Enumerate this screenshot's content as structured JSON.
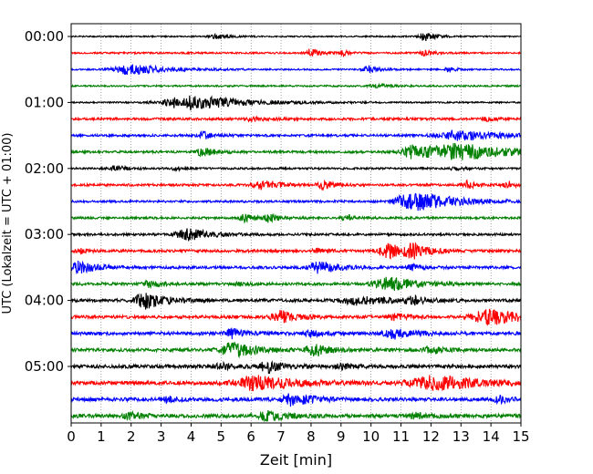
{
  "chart_data": {
    "type": "line",
    "subtype": "helicorder",
    "xlabel": "Zeit  [min]",
    "ylabel": "UTC (Lokalzeit = UTC + 01:00)",
    "xlim": [
      0,
      15
    ],
    "x_ticks": [
      "0",
      "1",
      "2",
      "3",
      "4",
      "5",
      "6",
      "7",
      "8",
      "9",
      "10",
      "11",
      "12",
      "13",
      "14",
      "15"
    ],
    "y_ticks": [
      "00:00",
      "01:00",
      "02:00",
      "03:00",
      "04:00",
      "05:00"
    ],
    "trace_minutes": 15,
    "trace_count": 24,
    "grid_x": true,
    "series": [
      {
        "name": "00:00",
        "color": "#000000",
        "noise": 0.18,
        "events": [
          {
            "t": 11.8,
            "amp": 1.2,
            "dur": 0.3
          },
          {
            "t": 4.8,
            "amp": 0.5,
            "dur": 0.4
          }
        ]
      },
      {
        "name": "00:15",
        "color": "#ff0000",
        "noise": 0.22,
        "events": [
          {
            "t": 8.0,
            "amp": 1.0,
            "dur": 0.3
          },
          {
            "t": 9.0,
            "amp": 0.9,
            "dur": 0.2
          },
          {
            "t": 11.8,
            "amp": 0.6,
            "dur": 0.3
          }
        ]
      },
      {
        "name": "00:30",
        "color": "#0000ff",
        "noise": 0.2,
        "events": [
          {
            "t": 2.0,
            "amp": 1.4,
            "dur": 1.0
          },
          {
            "t": 9.9,
            "amp": 1.0,
            "dur": 0.3
          },
          {
            "t": 12.6,
            "amp": 0.7,
            "dur": 0.2
          }
        ]
      },
      {
        "name": "00:45",
        "color": "#008000",
        "noise": 0.22,
        "events": [
          {
            "t": 10.2,
            "amp": 0.5,
            "dur": 0.4
          }
        ]
      },
      {
        "name": "01:00",
        "color": "#000000",
        "noise": 0.2,
        "events": [
          {
            "t": 4.0,
            "amp": 2.0,
            "dur": 1.5
          }
        ]
      },
      {
        "name": "01:15",
        "color": "#ff0000",
        "noise": 0.3,
        "events": [
          {
            "t": 6.0,
            "amp": 0.6,
            "dur": 0.4
          },
          {
            "t": 13.8,
            "amp": 0.5,
            "dur": 0.3
          }
        ]
      },
      {
        "name": "01:30",
        "color": "#0000ff",
        "noise": 0.3,
        "events": [
          {
            "t": 4.4,
            "amp": 0.9,
            "dur": 0.3
          },
          {
            "t": 13.0,
            "amp": 1.2,
            "dur": 1.2
          }
        ]
      },
      {
        "name": "01:45",
        "color": "#008000",
        "noise": 0.3,
        "events": [
          {
            "t": 4.4,
            "amp": 1.0,
            "dur": 0.4
          },
          {
            "t": 11.4,
            "amp": 1.6,
            "dur": 0.6
          },
          {
            "t": 13.0,
            "amp": 2.0,
            "dur": 1.6
          }
        ]
      },
      {
        "name": "02:00",
        "color": "#000000",
        "noise": 0.25,
        "events": [
          {
            "t": 1.5,
            "amp": 0.6,
            "dur": 0.4
          },
          {
            "t": 3.5,
            "amp": 0.4,
            "dur": 0.3
          },
          {
            "t": 12.8,
            "amp": 0.5,
            "dur": 0.3
          }
        ]
      },
      {
        "name": "02:15",
        "color": "#ff0000",
        "noise": 0.3,
        "events": [
          {
            "t": 6.4,
            "amp": 1.3,
            "dur": 0.5
          },
          {
            "t": 8.4,
            "amp": 1.2,
            "dur": 0.3
          },
          {
            "t": 13.2,
            "amp": 1.0,
            "dur": 0.3
          },
          {
            "t": 14.6,
            "amp": 0.8,
            "dur": 0.3
          }
        ]
      },
      {
        "name": "02:30",
        "color": "#0000ff",
        "noise": 0.28,
        "events": [
          {
            "t": 11.7,
            "amp": 2.0,
            "dur": 1.2
          },
          {
            "t": 11.0,
            "amp": 0.8,
            "dur": 0.4
          }
        ]
      },
      {
        "name": "02:45",
        "color": "#008000",
        "noise": 0.28,
        "events": [
          {
            "t": 5.8,
            "amp": 1.0,
            "dur": 0.3
          },
          {
            "t": 6.6,
            "amp": 1.1,
            "dur": 0.3
          },
          {
            "t": 9.2,
            "amp": 0.7,
            "dur": 0.3
          }
        ]
      },
      {
        "name": "03:00",
        "color": "#000000",
        "noise": 0.3,
        "events": [
          {
            "t": 3.9,
            "amp": 1.6,
            "dur": 0.6
          }
        ]
      },
      {
        "name": "03:15",
        "color": "#ff0000",
        "noise": 0.35,
        "events": [
          {
            "t": 10.6,
            "amp": 1.8,
            "dur": 0.6
          },
          {
            "t": 11.4,
            "amp": 1.6,
            "dur": 0.4
          },
          {
            "t": 8.2,
            "amp": 0.6,
            "dur": 0.3
          },
          {
            "t": 0.3,
            "amp": 0.6,
            "dur": 0.2
          }
        ]
      },
      {
        "name": "03:30",
        "color": "#0000ff",
        "noise": 0.35,
        "events": [
          {
            "t": 0.3,
            "amp": 1.5,
            "dur": 0.5
          },
          {
            "t": 8.3,
            "amp": 1.5,
            "dur": 0.6
          },
          {
            "t": 11.4,
            "amp": 0.7,
            "dur": 0.3
          }
        ]
      },
      {
        "name": "03:45",
        "color": "#008000",
        "noise": 0.35,
        "events": [
          {
            "t": 10.6,
            "amp": 1.8,
            "dur": 0.8
          },
          {
            "t": 2.6,
            "amp": 0.7,
            "dur": 0.4
          },
          {
            "t": 5.6,
            "amp": 0.5,
            "dur": 0.3
          }
        ]
      },
      {
        "name": "04:00",
        "color": "#000000",
        "noise": 0.38,
        "events": [
          {
            "t": 2.5,
            "amp": 2.0,
            "dur": 0.6
          },
          {
            "t": 9.6,
            "amp": 1.0,
            "dur": 1.0
          },
          {
            "t": 11.4,
            "amp": 0.9,
            "dur": 0.4
          }
        ]
      },
      {
        "name": "04:15",
        "color": "#ff0000",
        "noise": 0.4,
        "events": [
          {
            "t": 7.0,
            "amp": 1.5,
            "dur": 0.5
          },
          {
            "t": 14.0,
            "amp": 2.0,
            "dur": 1.0
          },
          {
            "t": 10.8,
            "amp": 0.7,
            "dur": 0.4
          }
        ]
      },
      {
        "name": "04:30",
        "color": "#0000ff",
        "noise": 0.42,
        "events": [
          {
            "t": 5.4,
            "amp": 1.3,
            "dur": 0.4
          },
          {
            "t": 10.8,
            "amp": 1.2,
            "dur": 0.6
          },
          {
            "t": 8.0,
            "amp": 0.8,
            "dur": 0.3
          }
        ]
      },
      {
        "name": "04:45",
        "color": "#008000",
        "noise": 0.42,
        "events": [
          {
            "t": 5.4,
            "amp": 1.8,
            "dur": 0.7
          },
          {
            "t": 8.1,
            "amp": 1.8,
            "dur": 0.4
          },
          {
            "t": 12.0,
            "amp": 1.0,
            "dur": 0.4
          }
        ]
      },
      {
        "name": "05:00",
        "color": "#000000",
        "noise": 0.45,
        "events": [
          {
            "t": 6.6,
            "amp": 1.4,
            "dur": 0.5
          },
          {
            "t": 5.0,
            "amp": 0.8,
            "dur": 0.4
          },
          {
            "t": 9.0,
            "amp": 0.7,
            "dur": 0.3
          }
        ]
      },
      {
        "name": "05:15",
        "color": "#ff0000",
        "noise": 0.45,
        "events": [
          {
            "t": 6.2,
            "amp": 1.8,
            "dur": 1.2
          },
          {
            "t": 12.2,
            "amp": 1.8,
            "dur": 1.4
          }
        ]
      },
      {
        "name": "05:30",
        "color": "#0000ff",
        "noise": 0.45,
        "events": [
          {
            "t": 7.4,
            "amp": 1.6,
            "dur": 0.6
          },
          {
            "t": 3.2,
            "amp": 0.8,
            "dur": 0.3
          },
          {
            "t": 14.3,
            "amp": 0.8,
            "dur": 0.3
          }
        ]
      },
      {
        "name": "05:45",
        "color": "#008000",
        "noise": 0.48,
        "events": [
          {
            "t": 6.6,
            "amp": 1.2,
            "dur": 0.5
          },
          {
            "t": 2.0,
            "amp": 0.7,
            "dur": 0.4
          },
          {
            "t": 11.5,
            "amp": 0.7,
            "dur": 0.4
          }
        ]
      }
    ]
  }
}
